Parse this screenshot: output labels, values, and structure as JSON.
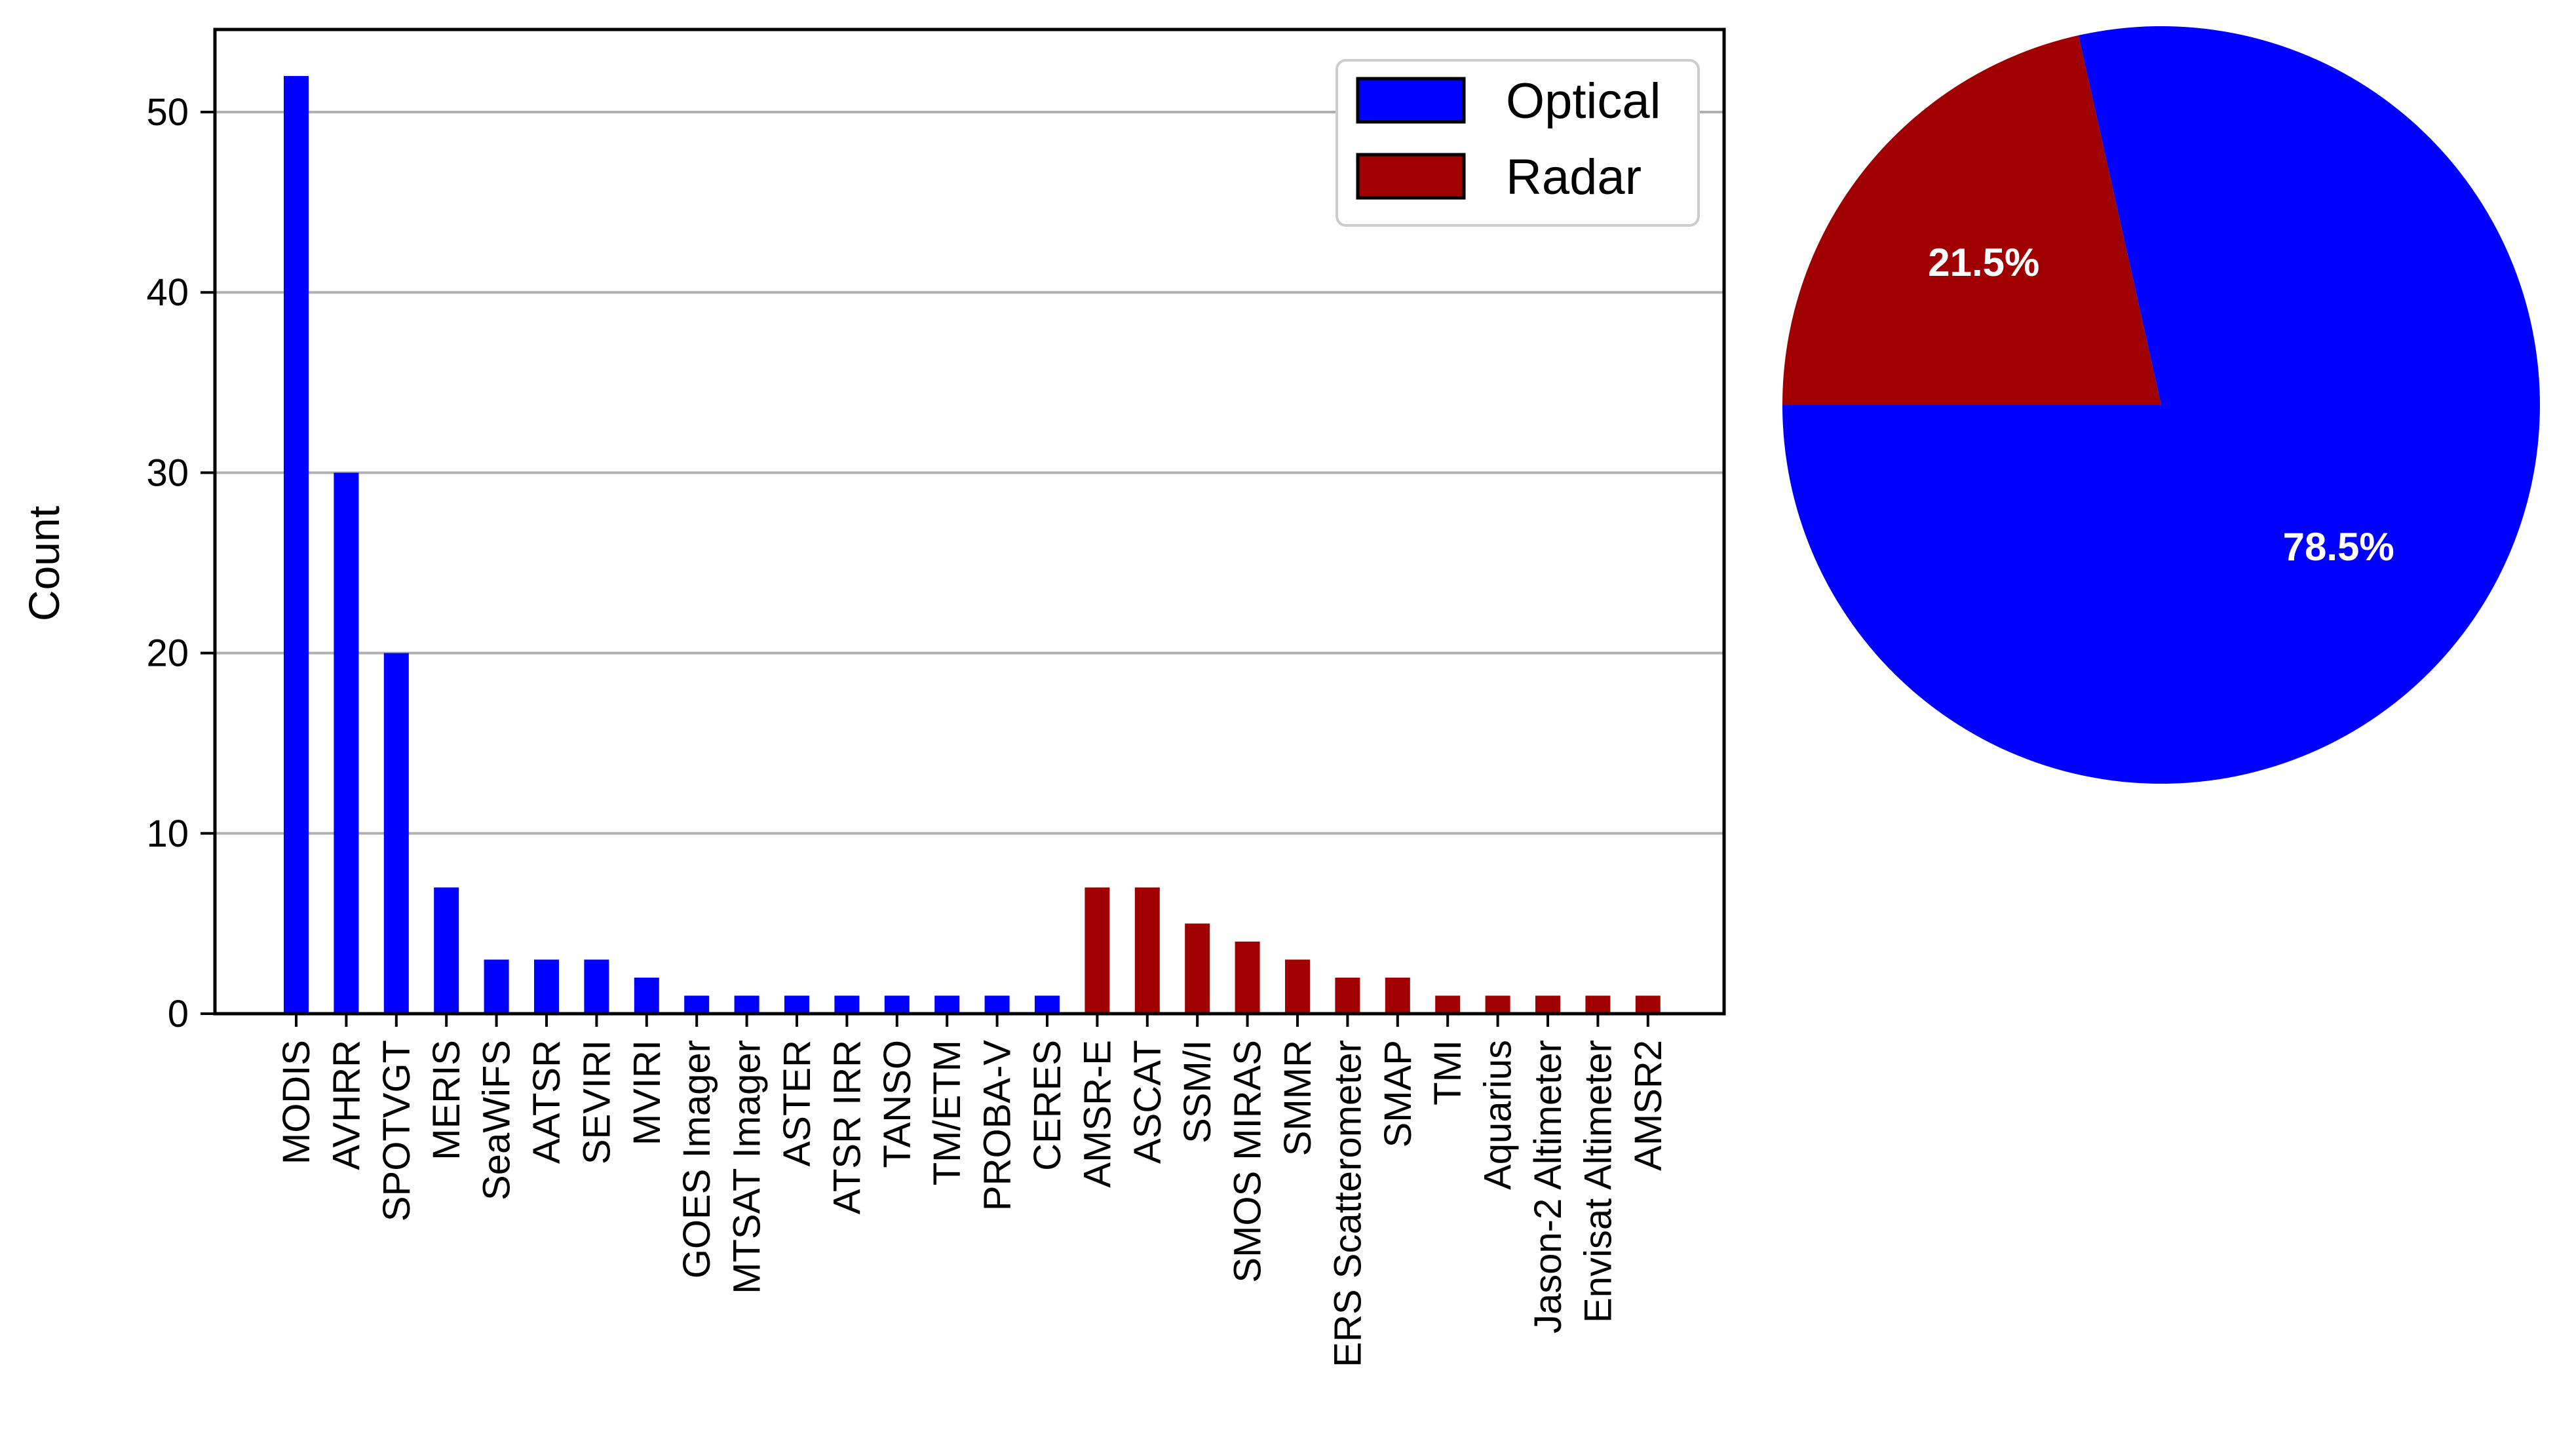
{
  "chart_data": [
    {
      "type": "bar",
      "ylabel": "Count",
      "ylim": [
        0,
        55
      ],
      "yticks": [
        0,
        10,
        20,
        30,
        40,
        50
      ],
      "grid": "horizontal",
      "legend_position": "top-right",
      "colors": {
        "Optical": "#0000ff",
        "Radar": "#a00000"
      },
      "legend": [
        {
          "label": "Optical",
          "color": "#0000ff"
        },
        {
          "label": "Radar",
          "color": "#a00000"
        }
      ],
      "categories": [
        "MODIS",
        "AVHRR",
        "SPOTVGT",
        "MERIS",
        "SeaWiFS",
        "AATSR",
        "SEVIRI",
        "MVIRI",
        "GOES Imager",
        "MTSAT Imager",
        "ASTER",
        "ATSR IRR",
        "TANSO",
        "TM/ETM",
        "PROBA-V",
        "CERES",
        "AMSR-E",
        "ASCAT",
        "SSM/I",
        "SMOS MIRAS",
        "SMMR",
        "ERS Scatterometer",
        "SMAP",
        "TMI",
        "Aquarius",
        "Jason-2 Altimeter",
        "Envisat Altimeter",
        "AMSR2"
      ],
      "values": [
        52,
        30,
        20,
        7,
        3,
        3,
        3,
        2,
        1,
        1,
        1,
        1,
        1,
        1,
        1,
        1,
        7,
        7,
        5,
        4,
        3,
        2,
        2,
        1,
        1,
        1,
        1,
        1
      ],
      "group": [
        "Optical",
        "Optical",
        "Optical",
        "Optical",
        "Optical",
        "Optical",
        "Optical",
        "Optical",
        "Optical",
        "Optical",
        "Optical",
        "Optical",
        "Optical",
        "Optical",
        "Optical",
        "Optical",
        "Radar",
        "Radar",
        "Radar",
        "Radar",
        "Radar",
        "Radar",
        "Radar",
        "Radar",
        "Radar",
        "Radar",
        "Radar",
        "Radar"
      ]
    },
    {
      "type": "pie",
      "slices": [
        {
          "label": "Radar",
          "value": 21.5,
          "text": "21.5%",
          "color": "#a00000"
        },
        {
          "label": "Optical",
          "value": 78.5,
          "text": "78.5%",
          "color": "#0000ff"
        }
      ]
    }
  ]
}
